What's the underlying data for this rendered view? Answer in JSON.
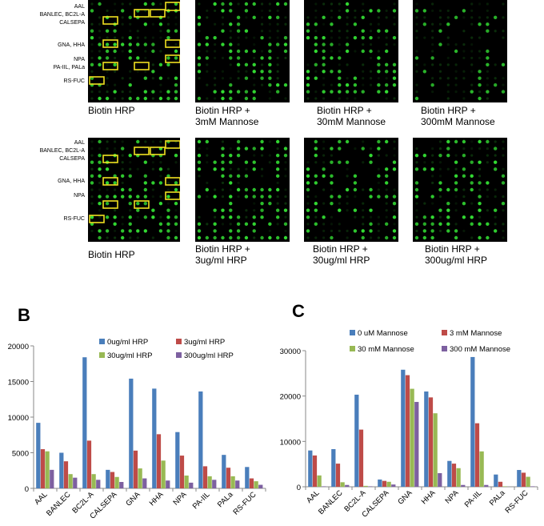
{
  "micro_rows": {
    "top": [
      {
        "label": "AAL"
      },
      {
        "label": "BANLEC, BC2L-A"
      },
      {
        "label": "CALSEPA"
      },
      {
        "label": "GNA, HHA"
      },
      {
        "label": "NPA"
      },
      {
        "label": "PA-IIL, PALa"
      },
      {
        "label": "RS-FUC"
      }
    ],
    "bottom": [
      {
        "label": "AAL"
      },
      {
        "label": "BANLEC, BC2L-A"
      },
      {
        "label": "CALSEPA"
      },
      {
        "label": "GNA, HHA"
      },
      {
        "label": "NPA"
      },
      {
        "label": "RS-FUC"
      }
    ]
  },
  "captions": {
    "top": [
      {
        "line1": "Biotin HRP",
        "line2": ""
      },
      {
        "line1": "Biotin HRP +",
        "line2": "3mM Mannose"
      },
      {
        "line1": "Biotin HRP +",
        "line2": "30mM Mannose"
      },
      {
        "line1": "Biotin HRP +",
        "line2": "300mM Mannose"
      }
    ],
    "bottom": [
      {
        "line1": "Biotin HRP",
        "line2": ""
      },
      {
        "line1": "Biotin HRP +",
        "line2": "3ug/ml HRP"
      },
      {
        "line1": "Biotin HRP +",
        "line2": "30ug/ml HRP"
      },
      {
        "line1": "Biotin HRP +",
        "line2": "300ug/ml HRP"
      }
    ]
  },
  "colors": {
    "background_array": "#000000",
    "spot": "#33dd33",
    "highlight": "#f0e020",
    "series": [
      "#4a7ebb",
      "#be4b48",
      "#98b954",
      "#7d60a0"
    ]
  },
  "chart_data": [
    {
      "panel_letter": "B",
      "type": "bar",
      "categories": [
        "AAL",
        "BANLEC",
        "BC2L-A",
        "CALSEPA",
        "GNA",
        "HHA",
        "NPA",
        "PA-IIL",
        "PALa",
        "RS-FUC"
      ],
      "series": [
        {
          "name": "0ug/ml HRP",
          "values": [
            9200,
            5000,
            18400,
            2600,
            15400,
            14000,
            7900,
            13600,
            4700,
            3000
          ]
        },
        {
          "name": "3ug/ml HRP",
          "values": [
            5500,
            3800,
            6700,
            2300,
            5300,
            7600,
            4600,
            3100,
            2900,
            1400
          ]
        },
        {
          "name": "30ug/ml HRP",
          "values": [
            5200,
            2000,
            2000,
            1600,
            2800,
            3900,
            1800,
            1700,
            1700,
            1000
          ]
        },
        {
          "name": "300ug/ml HRP",
          "values": [
            2600,
            1500,
            1200,
            900,
            1400,
            1100,
            800,
            1200,
            1100,
            500
          ]
        }
      ],
      "ylim": [
        0,
        20000
      ],
      "yticks": [
        "0",
        "5000",
        "10000",
        "15000",
        "20000"
      ],
      "legend": "top, two columns"
    },
    {
      "panel_letter": "C",
      "type": "bar",
      "categories": [
        "AAL",
        "BANLEC",
        "BC2L-A",
        "CALSEPA",
        "GNA",
        "HHA",
        "NPA",
        "PA-IIL",
        "PALa",
        "RS-FUC"
      ],
      "series": [
        {
          "name": "0 uM Mannose",
          "values": [
            8000,
            8300,
            20300,
            1600,
            25800,
            21000,
            5700,
            28600,
            2700,
            3700
          ]
        },
        {
          "name": "3 mM Mannose",
          "values": [
            6900,
            5100,
            12600,
            1300,
            24600,
            19700,
            5100,
            14000,
            1100,
            3100
          ]
        },
        {
          "name": "30 mM Mannose",
          "values": [
            2500,
            1000,
            200,
            1100,
            21600,
            16200,
            4100,
            7800,
            100,
            2200
          ]
        },
        {
          "name": "300 mM Mannose",
          "values": [
            100,
            400,
            100,
            500,
            18700,
            3000,
            400,
            400,
            0,
            100
          ]
        }
      ],
      "ylim": [
        0,
        30000
      ],
      "yticks": [
        "0",
        "10000",
        "20000",
        "30000"
      ],
      "legend": "top, two columns"
    }
  ]
}
